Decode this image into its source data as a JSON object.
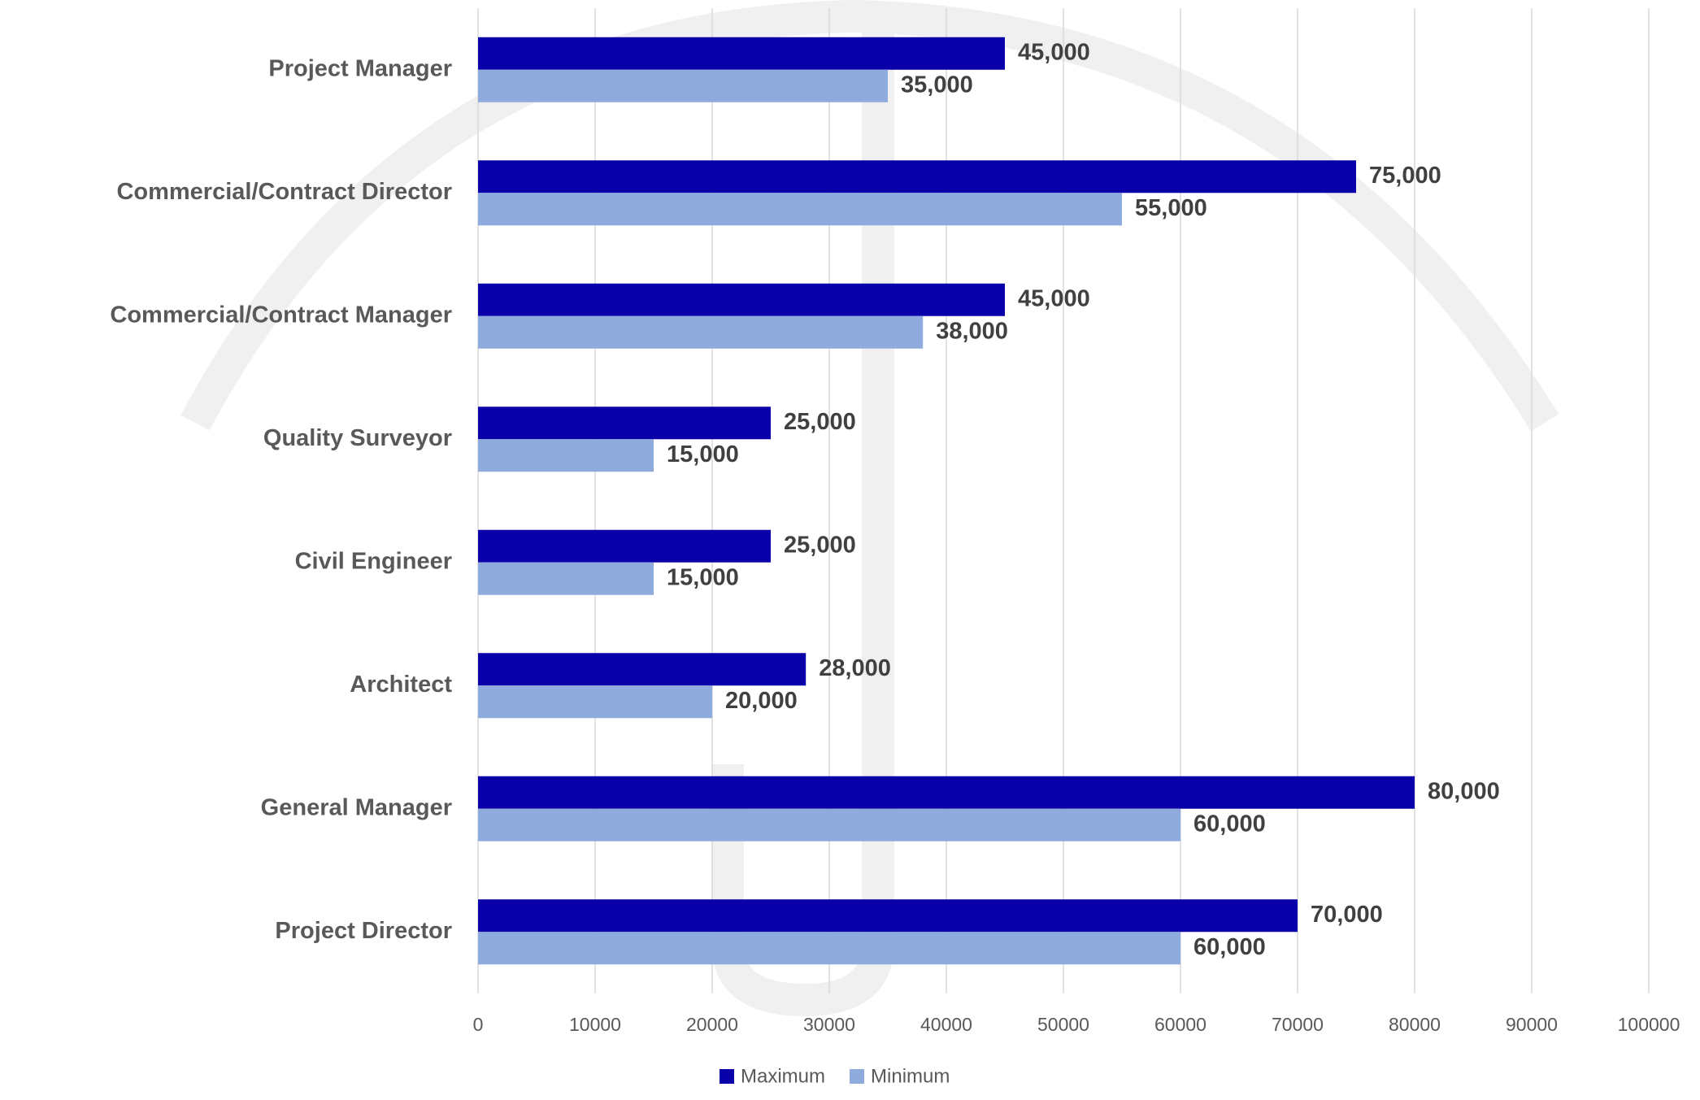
{
  "chart_data": {
    "type": "bar",
    "orientation": "horizontal",
    "categories": [
      "Project Manager",
      "Commercial/Contract Director",
      "Commercial/Contract Manager",
      "Quality Surveyor",
      "Civil Engineer",
      "Architect",
      "General Manager",
      "Project Director"
    ],
    "series": [
      {
        "name": "Maximum",
        "color": "#0a00aa",
        "values": [
          45000,
          75000,
          45000,
          25000,
          25000,
          28000,
          80000,
          70000
        ],
        "value_labels": [
          "45,000",
          "75,000",
          "45,000",
          "25,000",
          "25,000",
          "28,000",
          "80,000",
          "70,000"
        ]
      },
      {
        "name": "Minimum",
        "color": "#8faadc",
        "values": [
          35000,
          55000,
          38000,
          15000,
          15000,
          20000,
          60000,
          60000
        ],
        "value_labels": [
          "35,000",
          "55,000",
          "38,000",
          "15,000",
          "15,000",
          "20,000",
          "60,000",
          "60,000"
        ]
      }
    ],
    "xlim": [
      0,
      100000
    ],
    "xticks": [
      0,
      10000,
      20000,
      30000,
      40000,
      50000,
      60000,
      70000,
      80000,
      90000,
      100000
    ],
    "grid": true,
    "legend": "bottom"
  }
}
